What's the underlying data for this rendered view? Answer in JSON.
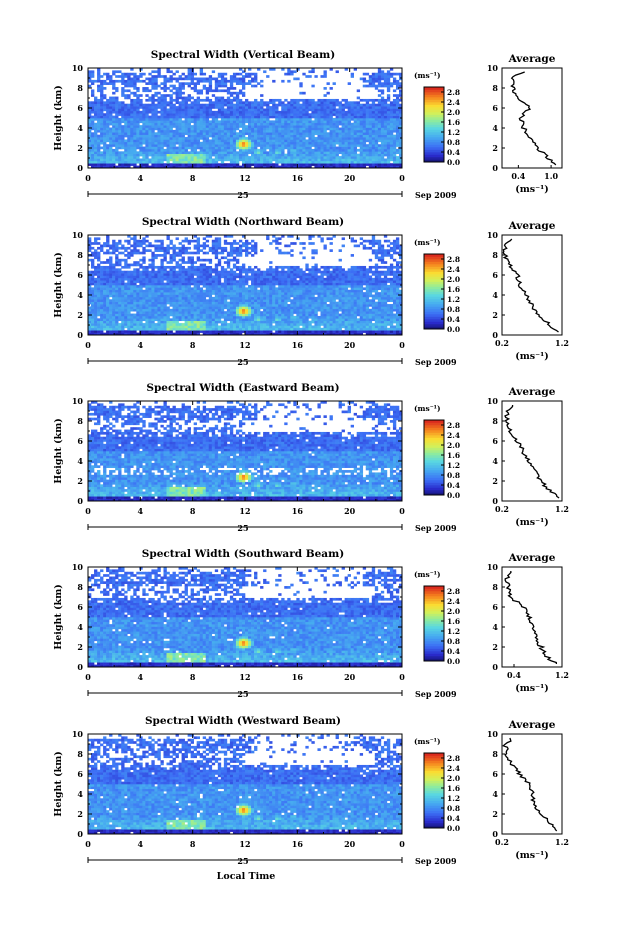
{
  "figure": {
    "date_label": "Sep 2009",
    "day_label": "25",
    "xlabel": "Local Time",
    "ylabel": "Height (km)",
    "colorbar_unit": "(ms⁻¹)",
    "avg_title": "Average",
    "avg_xlabel": "(ms⁻¹)"
  },
  "chart_data": [
    {
      "type": "heatmap",
      "title": "Spectral Width (Vertical Beam)",
      "xlabel": "",
      "ylabel": "Height (km)",
      "xlim": [
        0,
        24
      ],
      "ylim": [
        0,
        10
      ],
      "xticks": [
        "0",
        "4",
        "8",
        "12",
        "16",
        "20",
        "0"
      ],
      "yticks": [
        "0",
        "2",
        "4",
        "6",
        "8",
        "10"
      ],
      "colorbar": {
        "ticks": [
          "0.0",
          "0.4",
          "0.8",
          "1.2",
          "1.6",
          "2.0",
          "2.4",
          "2.8"
        ],
        "range": [
          0,
          3.0
        ]
      },
      "avg_profile": {
        "xlim": [
          0.1,
          1.2
        ],
        "xticks": [
          "0.4",
          "1.0"
        ],
        "height": [
          0.3,
          1,
          2,
          3,
          4,
          5,
          6,
          7,
          8,
          9,
          9.5
        ],
        "width": [
          1.05,
          0.95,
          0.75,
          0.6,
          0.5,
          0.45,
          0.6,
          0.38,
          0.3,
          0.28,
          0.45
        ]
      }
    },
    {
      "type": "heatmap",
      "title": "Spectral Width (Northward Beam)",
      "xlabel": "",
      "ylabel": "Height (km)",
      "xlim": [
        0,
        24
      ],
      "ylim": [
        0,
        10
      ],
      "xticks": [
        "0",
        "4",
        "8",
        "12",
        "16",
        "20",
        "0"
      ],
      "yticks": [
        "0",
        "2",
        "4",
        "6",
        "8",
        "10"
      ],
      "colorbar": {
        "ticks": [
          "0.0",
          "0.4",
          "0.8",
          "1.2",
          "1.6",
          "2.0",
          "2.4",
          "2.8"
        ],
        "range": [
          0,
          3.0
        ]
      },
      "avg_profile": {
        "xlim": [
          0.2,
          1.2
        ],
        "xticks": [
          "0.2",
          "1.2"
        ],
        "height": [
          0.3,
          1,
          2,
          3,
          4,
          5,
          6,
          7,
          8,
          9,
          9.5
        ],
        "width": [
          1.15,
          1.0,
          0.8,
          0.7,
          0.6,
          0.5,
          0.45,
          0.32,
          0.25,
          0.24,
          0.35
        ]
      }
    },
    {
      "type": "heatmap",
      "title": "Spectral Width (Eastward Beam)",
      "xlabel": "",
      "ylabel": "Height (km)",
      "xlim": [
        0,
        24
      ],
      "ylim": [
        0,
        10
      ],
      "xticks": [
        "0",
        "4",
        "8",
        "12",
        "16",
        "20",
        "0"
      ],
      "yticks": [
        "0",
        "2",
        "4",
        "6",
        "8",
        "10"
      ],
      "colorbar": {
        "ticks": [
          "0.0",
          "0.4",
          "0.8",
          "1.2",
          "1.6",
          "2.0",
          "2.4",
          "2.8"
        ],
        "range": [
          0,
          3.0
        ]
      },
      "avg_profile": {
        "xlim": [
          0.2,
          1.2
        ],
        "xticks": [
          "0.2",
          "1.2"
        ],
        "height": [
          0.3,
          1,
          2,
          3,
          4,
          5,
          6,
          7,
          8,
          9,
          9.5
        ],
        "width": [
          1.15,
          1.0,
          0.85,
          0.75,
          0.65,
          0.55,
          0.45,
          0.35,
          0.3,
          0.28,
          0.35
        ]
      }
    },
    {
      "type": "heatmap",
      "title": "Spectral Width (Southward Beam)",
      "xlabel": "",
      "ylabel": "Height (km)",
      "xlim": [
        0,
        24
      ],
      "ylim": [
        0,
        10
      ],
      "xticks": [
        "0",
        "4",
        "8",
        "12",
        "16",
        "20",
        "0"
      ],
      "yticks": [
        "0",
        "2",
        "4",
        "6",
        "8",
        "10"
      ],
      "colorbar": {
        "ticks": [
          "0.0",
          "0.4",
          "0.8",
          "1.2",
          "1.6",
          "2.0",
          "2.4",
          "2.8"
        ],
        "range": [
          0,
          3.0
        ]
      },
      "avg_profile": {
        "xlim": [
          0.2,
          1.2
        ],
        "xticks": [
          "0.4",
          "1.2"
        ],
        "height": [
          0.3,
          1,
          2,
          3,
          4,
          5,
          6,
          7,
          8,
          9,
          9.5
        ],
        "width": [
          1.1,
          0.95,
          0.85,
          0.75,
          0.7,
          0.65,
          0.55,
          0.35,
          0.3,
          0.28,
          0.35
        ]
      }
    },
    {
      "type": "heatmap",
      "title": "Spectral Width (Westward Beam)",
      "xlabel": "",
      "ylabel": "Height (km)",
      "xlim": [
        0,
        24
      ],
      "ylim": [
        0,
        10
      ],
      "xticks": [
        "0",
        "4",
        "8",
        "12",
        "16",
        "20",
        "0"
      ],
      "yticks": [
        "0",
        "2",
        "4",
        "6",
        "8",
        "10"
      ],
      "colorbar": {
        "ticks": [
          "0.0",
          "0.4",
          "0.8",
          "1.2",
          "1.6",
          "2.0",
          "2.4",
          "2.8"
        ],
        "range": [
          0,
          3.0
        ]
      },
      "avg_profile": {
        "xlim": [
          0.2,
          1.2
        ],
        "xticks": [
          "0.2",
          "1.2"
        ],
        "height": [
          0.3,
          1,
          2,
          3,
          4,
          5,
          6,
          7,
          8,
          9,
          9.5
        ],
        "width": [
          1.15,
          1.0,
          0.85,
          0.75,
          0.7,
          0.65,
          0.5,
          0.35,
          0.28,
          0.25,
          0.35
        ]
      }
    }
  ]
}
